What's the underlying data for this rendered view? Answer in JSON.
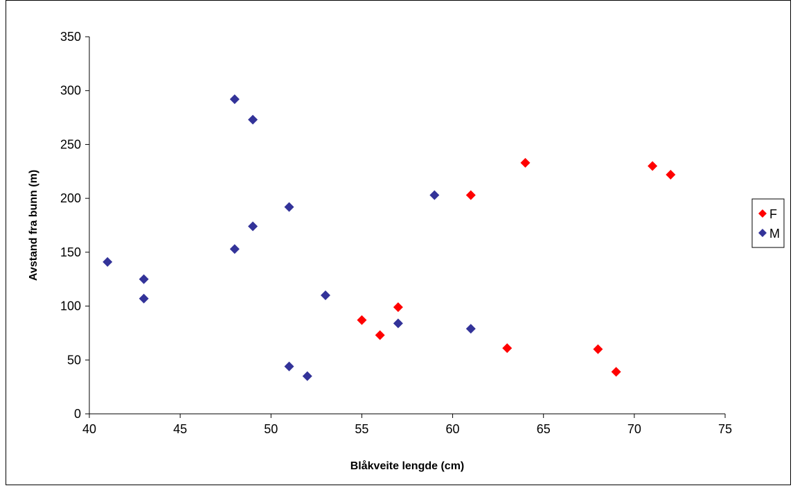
{
  "chart_data": {
    "type": "scatter",
    "title": "",
    "xlabel": "Blåkveite lengde (cm)",
    "ylabel": "Avstand fra bunn (m)",
    "xlim": [
      40,
      75
    ],
    "ylim": [
      0,
      350
    ],
    "xticks": [
      "40",
      "45",
      "50",
      "55",
      "60",
      "65",
      "70",
      "75"
    ],
    "yticks": [
      "0",
      "50",
      "100",
      "150",
      "200",
      "250",
      "300",
      "350"
    ],
    "grid": false,
    "legend_position": "right",
    "series": [
      {
        "name": "F",
        "color": "#ff0000",
        "marker": "diamond",
        "points": [
          {
            "x": 55,
            "y": 87
          },
          {
            "x": 56,
            "y": 73
          },
          {
            "x": 57,
            "y": 99
          },
          {
            "x": 61,
            "y": 203
          },
          {
            "x": 63,
            "y": 61
          },
          {
            "x": 64,
            "y": 233
          },
          {
            "x": 68,
            "y": 60
          },
          {
            "x": 69,
            "y": 39
          },
          {
            "x": 71,
            "y": 230
          },
          {
            "x": 72,
            "y": 222
          }
        ]
      },
      {
        "name": "M",
        "color": "#333399",
        "marker": "diamond",
        "points": [
          {
            "x": 41,
            "y": 141
          },
          {
            "x": 43,
            "y": 125
          },
          {
            "x": 43,
            "y": 107
          },
          {
            "x": 48,
            "y": 292
          },
          {
            "x": 48,
            "y": 153
          },
          {
            "x": 49,
            "y": 273
          },
          {
            "x": 49,
            "y": 174
          },
          {
            "x": 51,
            "y": 192
          },
          {
            "x": 51,
            "y": 44
          },
          {
            "x": 52,
            "y": 35
          },
          {
            "x": 53,
            "y": 110
          },
          {
            "x": 57,
            "y": 84
          },
          {
            "x": 59,
            "y": 203
          },
          {
            "x": 61,
            "y": 79
          }
        ]
      }
    ]
  }
}
